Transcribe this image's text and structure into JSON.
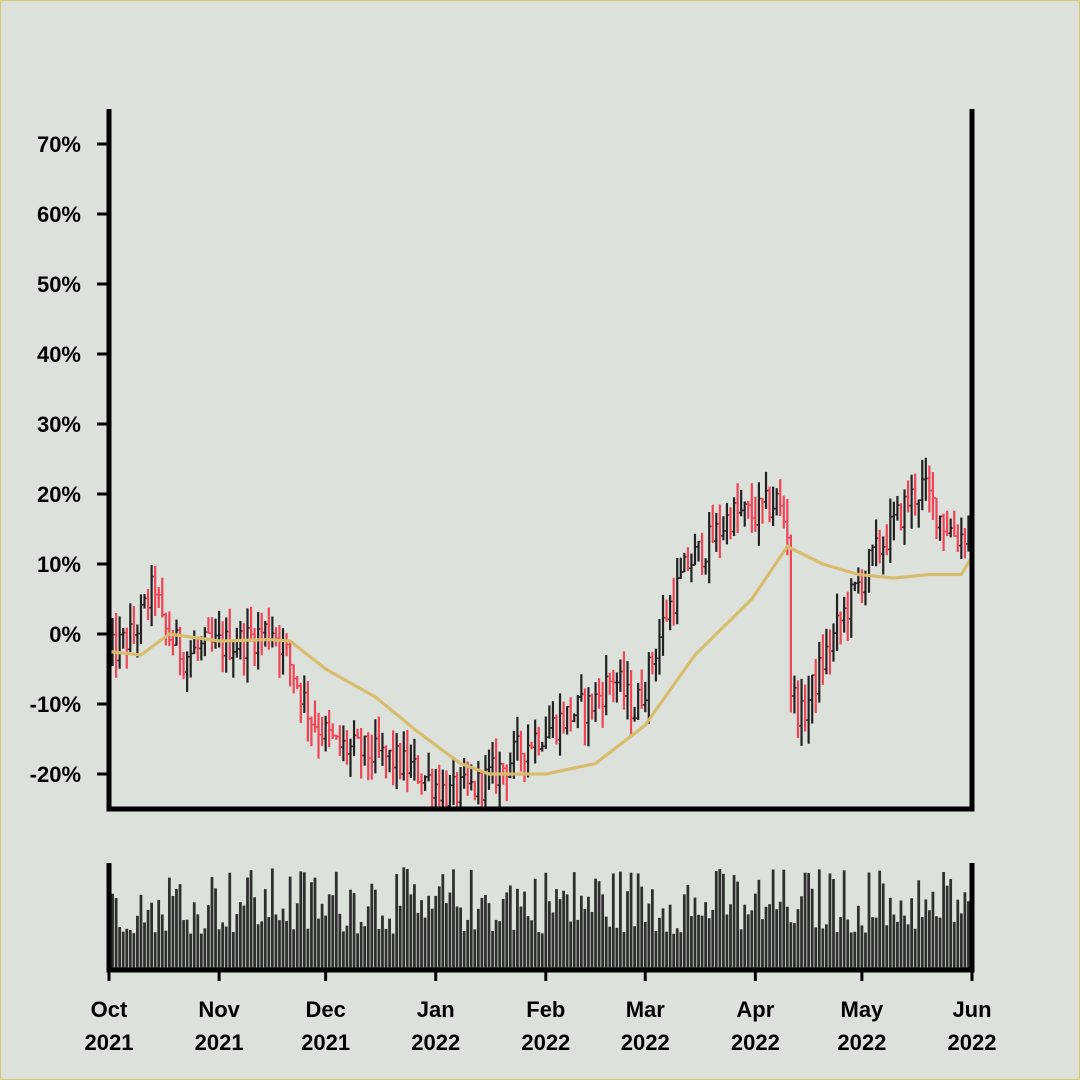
{
  "chart_data": {
    "type": "ohlc",
    "title": "",
    "ylabel": "",
    "xlabel": "",
    "ylim": [
      -25,
      75
    ],
    "y_ticks": [
      {
        "value": 70,
        "label": "70%"
      },
      {
        "value": 60,
        "label": "60%"
      },
      {
        "value": 50,
        "label": "50%"
      },
      {
        "value": 40,
        "label": "40%"
      },
      {
        "value": 30,
        "label": "30%"
      },
      {
        "value": 20,
        "label": "20%"
      },
      {
        "value": 10,
        "label": "10%"
      },
      {
        "value": 0,
        "label": "0%"
      },
      {
        "value": -10,
        "label": "-10%"
      },
      {
        "value": -20,
        "label": "-20%"
      }
    ],
    "x_range": [
      "2021-10-01",
      "2022-06-01"
    ],
    "x_ticks": [
      {
        "date": "2021-10-01",
        "label": [
          "Oct",
          "2021"
        ]
      },
      {
        "date": "2021-11-01",
        "label": [
          "Nov",
          "2021"
        ]
      },
      {
        "date": "2021-12-01",
        "label": [
          "Dec",
          "2021"
        ]
      },
      {
        "date": "2022-01-01",
        "label": [
          "Jan",
          "2022"
        ]
      },
      {
        "date": "2022-02-01",
        "label": [
          "Feb",
          "2022"
        ]
      },
      {
        "date": "2022-03-01",
        "label": [
          "Mar",
          "2022"
        ]
      },
      {
        "date": "2022-04-01",
        "label": [
          "Apr",
          "2022"
        ]
      },
      {
        "date": "2022-05-01",
        "label": [
          "May",
          "2022"
        ]
      },
      {
        "date": "2022-06-01",
        "label": [
          "Jun",
          "2022"
        ]
      }
    ],
    "price_path": [
      [
        "2021-10-01",
        -3
      ],
      [
        "2021-10-08",
        0
      ],
      [
        "2021-10-14",
        7
      ],
      [
        "2021-10-16",
        1
      ],
      [
        "2021-10-22",
        -3
      ],
      [
        "2021-10-28",
        -2
      ],
      [
        "2021-11-08",
        -1
      ],
      [
        "2021-11-16",
        1
      ],
      [
        "2021-11-20",
        -3
      ],
      [
        "2021-11-27",
        -12
      ],
      [
        "2021-12-04",
        -16
      ],
      [
        "2021-12-12",
        -17
      ],
      [
        "2021-12-20",
        -18
      ],
      [
        "2021-12-28",
        -20
      ],
      [
        "2022-01-05",
        -23
      ],
      [
        "2022-01-12",
        -22
      ],
      [
        "2022-01-20",
        -19
      ],
      [
        "2022-01-28",
        -15
      ],
      [
        "2022-02-06",
        -12
      ],
      [
        "2022-02-14",
        -10
      ],
      [
        "2022-02-20",
        -6
      ],
      [
        "2022-02-26",
        -11
      ],
      [
        "2022-03-01",
        -7
      ],
      [
        "2022-03-07",
        3
      ],
      [
        "2022-03-13",
        10
      ],
      [
        "2022-03-19",
        13
      ],
      [
        "2022-03-25",
        17
      ],
      [
        "2022-04-01",
        17
      ],
      [
        "2022-04-07",
        19
      ],
      [
        "2022-04-10",
        15
      ],
      [
        "2022-04-11",
        -8
      ],
      [
        "2022-04-14",
        -12
      ],
      [
        "2022-04-20",
        -4
      ],
      [
        "2022-04-26",
        3
      ],
      [
        "2022-05-02",
        9
      ],
      [
        "2022-05-08",
        14
      ],
      [
        "2022-05-14",
        19
      ],
      [
        "2022-05-18",
        21
      ],
      [
        "2022-05-24",
        16
      ],
      [
        "2022-05-28",
        14
      ],
      [
        "2022-06-01",
        15
      ]
    ],
    "moving_average": [
      [
        "2021-10-01",
        -2.5
      ],
      [
        "2021-10-10",
        -3
      ],
      [
        "2021-10-18",
        0
      ],
      [
        "2021-11-01",
        -1
      ],
      [
        "2021-11-15",
        -0.8
      ],
      [
        "2021-11-21",
        -1
      ],
      [
        "2021-12-01",
        -5
      ],
      [
        "2021-12-15",
        -9
      ],
      [
        "2021-12-27",
        -14
      ],
      [
        "2022-01-08",
        -18.5
      ],
      [
        "2022-01-16",
        -20
      ],
      [
        "2022-01-25",
        -20
      ],
      [
        "2022-02-01",
        -20
      ],
      [
        "2022-02-15",
        -18.5
      ],
      [
        "2022-03-01",
        -13
      ],
      [
        "2022-03-15",
        -3
      ],
      [
        "2022-03-31",
        5
      ],
      [
        "2022-04-10",
        12.5
      ],
      [
        "2022-04-20",
        10
      ],
      [
        "2022-04-30",
        8.5
      ],
      [
        "2022-05-10",
        8
      ],
      [
        "2022-05-20",
        8.5
      ],
      [
        "2022-05-29",
        8.5
      ],
      [
        "2022-06-01",
        11
      ]
    ],
    "colors": {
      "background": "#dde1dc",
      "up_bar": "#222222",
      "down_bar": "#ee4455",
      "moving_average": "#d8bc6e",
      "volume": "#2f2f2f",
      "axis": "#000000"
    },
    "volume": {
      "min": 0.35,
      "max": 1.0,
      "shown_as": "bar heights, no printed scale"
    },
    "grid": false,
    "legend": "none"
  }
}
